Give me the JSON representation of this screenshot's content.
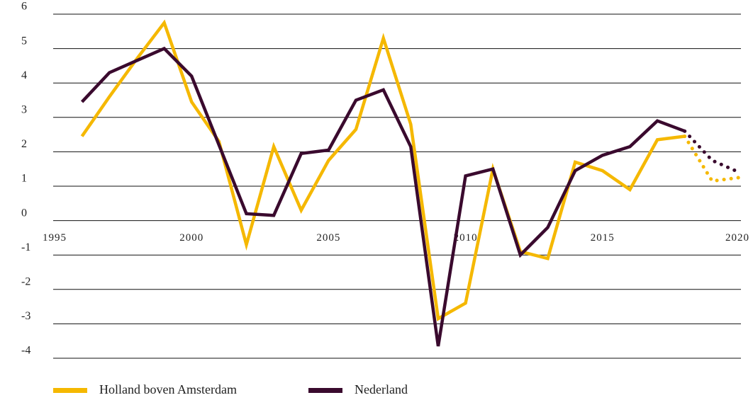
{
  "chart_data": {
    "type": "line",
    "x": [
      1996,
      1997,
      1998,
      1999,
      2000,
      2001,
      2002,
      2003,
      2004,
      2005,
      2006,
      2007,
      2008,
      2009,
      2010,
      2011,
      2012,
      2013,
      2014,
      2015,
      2016,
      2017,
      2018,
      2019,
      2020
    ],
    "series": [
      {
        "name": "Holland boven Amsterdam",
        "color": "#f5b800",
        "values": [
          2.45,
          3.6,
          4.7,
          5.75,
          3.45,
          2.3,
          -0.7,
          2.15,
          0.3,
          1.75,
          2.65,
          5.3,
          2.8,
          -2.85,
          -2.4,
          1.5,
          -0.9,
          -1.1,
          1.7,
          1.45,
          0.9,
          2.35,
          2.45,
          1.15,
          1.25
        ]
      },
      {
        "name": "Nederland",
        "color": "#3a0a2e",
        "values": [
          3.45,
          4.3,
          4.65,
          5.0,
          4.2,
          2.2,
          0.2,
          0.15,
          1.95,
          2.05,
          3.5,
          3.8,
          2.15,
          -3.65,
          1.3,
          1.5,
          -1.0,
          -0.2,
          1.45,
          1.9,
          2.15,
          2.9,
          2.6,
          1.75,
          1.4
        ]
      }
    ],
    "forecast_from": 2018,
    "xlim": [
      1995,
      2020
    ],
    "xticks": [
      1995,
      2000,
      2005,
      2010,
      2015,
      2020
    ],
    "ylim": [
      -4,
      6
    ],
    "yticks": [
      -4,
      -3,
      -2,
      -1,
      0,
      1,
      2,
      3,
      4,
      5,
      6
    ],
    "grid": true,
    "legend": "bottom"
  }
}
